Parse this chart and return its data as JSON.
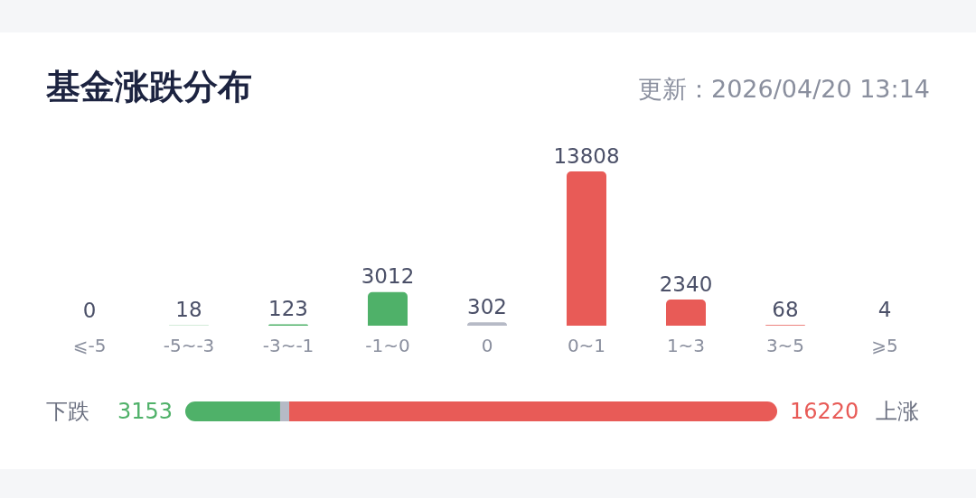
{
  "chart_data": [
    {
      "type": "bar",
      "title": "基金涨跌分布",
      "subtitle": "更新：2026/04/20 13:14",
      "categories": [
        "⩽-5",
        "-5~-3",
        "-3~-1",
        "-1~0",
        "0",
        "0~1",
        "1~3",
        "3~5",
        "⩾5"
      ],
      "values": [
        0,
        18,
        123,
        3012,
        302,
        13808,
        2340,
        68,
        4
      ],
      "colors": [
        "#4fb169",
        "#4fb169",
        "#4fb169",
        "#4fb169",
        "#b6bac6",
        "#e85b57",
        "#e85b57",
        "#e85b57",
        "#e85b57"
      ],
      "data_labels": true
    },
    {
      "type": "bar",
      "orientation": "horizontal",
      "stacked": true,
      "categories": [
        null
      ],
      "annotations": [
        "下跌",
        "上涨"
      ],
      "series": [
        {
          "color": "#4fb169",
          "values": [
            3153
          ],
          "value_labels": [
            "3153"
          ]
        },
        {
          "color": "#b6bac6",
          "values": [
            302
          ],
          "value_labels": [
            null
          ]
        },
        {
          "color": "#e85b57",
          "values": [
            16220
          ],
          "value_labels": [
            "16220"
          ]
        }
      ]
    }
  ]
}
